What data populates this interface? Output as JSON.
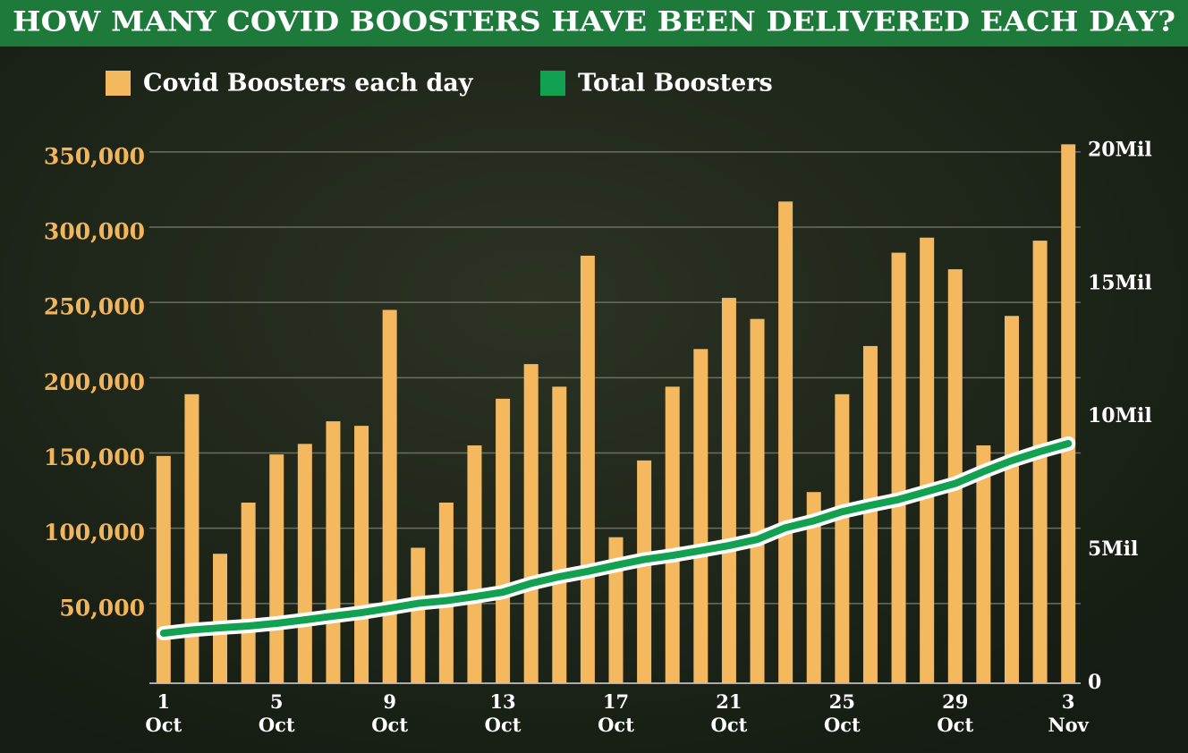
{
  "chart_data": {
    "type": "bar_line",
    "title": "HOW MANY COVID BOOSTERS HAVE BEEN DELIVERED EACH DAY?",
    "categories": [
      "1 Oct",
      null,
      null,
      null,
      "5 Oct",
      null,
      null,
      null,
      "9 Oct",
      null,
      null,
      null,
      "13 Oct",
      null,
      null,
      null,
      "17 Oct",
      null,
      null,
      null,
      "21 Oct",
      null,
      null,
      null,
      "25 Oct",
      null,
      null,
      null,
      "29 Oct",
      null,
      null,
      null,
      "3 Nov"
    ],
    "series": [
      {
        "name": "Covid Boosters each day",
        "color": "#f4b95e",
        "type": "bar",
        "values": [
          151000,
          192000,
          86000,
          120000,
          152000,
          159000,
          174000,
          171000,
          248000,
          90000,
          120000,
          158000,
          189000,
          212000,
          197000,
          284000,
          97000,
          148000,
          197000,
          222000,
          256000,
          242000,
          320000,
          127000,
          192000,
          224000,
          286000,
          296000,
          275000,
          158000,
          244000,
          294000,
          358000
        ]
      },
      {
        "name": "Total Boosters",
        "color": "#12a150",
        "type": "line",
        "axis": "y2",
        "values": [
          1.88,
          2.0,
          2.08,
          2.15,
          2.25,
          2.38,
          2.52,
          2.65,
          2.82,
          3.0,
          3.1,
          3.25,
          3.42,
          3.75,
          4.0,
          4.2,
          4.43,
          4.65,
          4.8,
          4.98,
          5.17,
          5.4,
          5.84,
          6.1,
          6.44,
          6.68,
          6.9,
          7.2,
          7.5,
          7.95,
          8.36,
          8.7,
          9.0
        ]
      }
    ],
    "ylim": [
      0,
      360000
    ],
    "yticks": [
      {
        "value": 50000,
        "label": "50,000"
      },
      {
        "value": 100000,
        "label": "100,000"
      },
      {
        "value": 150000,
        "label": "150,000"
      },
      {
        "value": 200000,
        "label": "200,000"
      },
      {
        "value": 250000,
        "label": "250,000"
      },
      {
        "value": 300000,
        "label": "300,000"
      },
      {
        "value": 350000,
        "label": "350,000"
      }
    ],
    "y2lim": [
      0,
      20.35
    ],
    "y2ticks": [
      0,
      {
        "value": 5,
        "label": "5Mil"
      },
      {
        "value": 10,
        "label": "10Mil"
      },
      {
        "value": 15,
        "label": "15Mil"
      },
      {
        "value": 20,
        "label": "20Mil"
      }
    ],
    "grid": true
  }
}
